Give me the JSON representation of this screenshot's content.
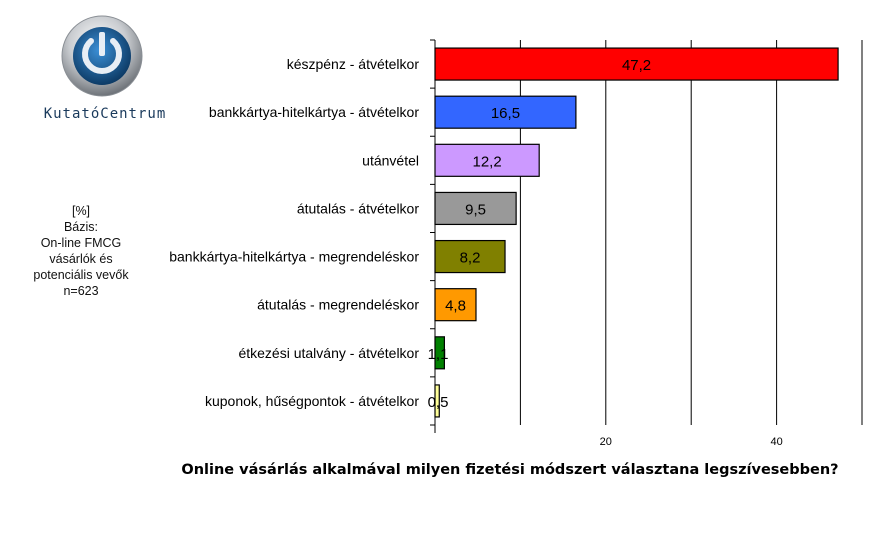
{
  "logo": {
    "brand": "KutatóCentrum"
  },
  "meta": {
    "unit": "[%]",
    "base_label": "Bázis:",
    "base_lines": [
      "On-line FMCG",
      "vásárlók és",
      "potenciális vevők",
      "n=623"
    ]
  },
  "chart_data": {
    "type": "bar",
    "orientation": "horizontal",
    "title": "Online vásárlás alkalmával milyen fizetési módszert választana legszívesebben?",
    "categories": [
      "készpénz - átvételkor",
      "bankkártya-hitelkártya - átvételkor",
      "utánvétel",
      "átutalás - átvételkor",
      "bankkártya-hitelkártya - megrendeléskor",
      "átutalás - megrendeléskor",
      "étkezési utalvány - átvételkor",
      "kuponok, hűségpontok - átvételkor"
    ],
    "values": [
      47.2,
      16.5,
      12.2,
      9.5,
      8.2,
      4.8,
      1.1,
      0.5
    ],
    "value_labels": [
      "47,2",
      "16,5",
      "12,2",
      "9,5",
      "8,2",
      "4,8",
      "1,1",
      "0,5"
    ],
    "colors": [
      "#ff0000",
      "#3366ff",
      "#cc99ff",
      "#999999",
      "#808000",
      "#ff9900",
      "#008000",
      "#ffff99"
    ],
    "xlim": [
      0,
      50
    ],
    "xticks": [
      20,
      40
    ],
    "xtick_labels": [
      "20",
      "40"
    ],
    "gridlines_x": [
      10,
      20,
      30,
      40,
      50
    ],
    "grid": true,
    "xlabel": "",
    "ylabel": ""
  }
}
